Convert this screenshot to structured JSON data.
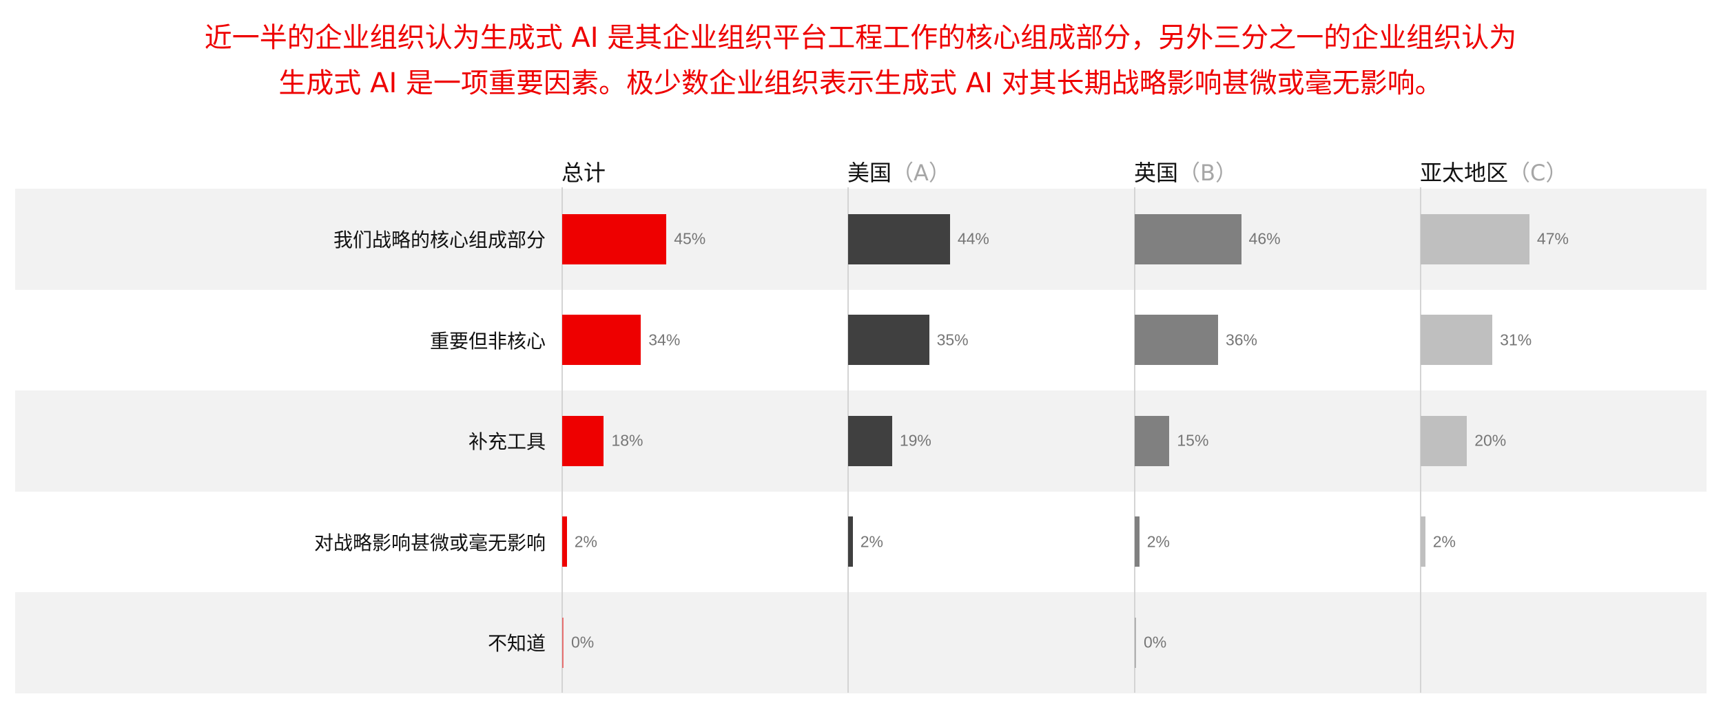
{
  "title_lines": [
    "近一半的企业组织认为生成式 AI 是其企业组织平台工程工作的核心组成部分，另外三分之一的企业组织认为",
    "生成式 AI 是一项重要因素。极少数企业组织表示生成式 AI 对其长期战略影响甚微或毫无影响。"
  ],
  "chart_data": {
    "type": "bar",
    "orientation": "horizontal",
    "categories": [
      "我们战略的核心组成部分",
      "重要但非核心",
      "补充工具",
      "对战略影响甚微或毫无影响",
      "不知道"
    ],
    "panels": [
      {
        "name": "总计",
        "suffix": "",
        "color": "#ee0000",
        "values": [
          45,
          34,
          18,
          2,
          0
        ],
        "labels": [
          "45%",
          "34%",
          "18%",
          "2%",
          "0%"
        ]
      },
      {
        "name": "美国",
        "suffix": "（A）",
        "color": "#404040",
        "values": [
          44,
          35,
          19,
          2,
          null
        ],
        "labels": [
          "44%",
          "35%",
          "19%",
          "2%",
          ""
        ]
      },
      {
        "name": "英国",
        "suffix": "（B）",
        "color": "#808080",
        "values": [
          46,
          36,
          15,
          2,
          0
        ],
        "labels": [
          "46%",
          "36%",
          "15%",
          "2%",
          "0%"
        ]
      },
      {
        "name": "亚太地区",
        "suffix": "（C）",
        "color": "#bfbfbf",
        "values": [
          47,
          31,
          20,
          2,
          null
        ],
        "labels": [
          "47%",
          "31%",
          "20%",
          "2%",
          ""
        ]
      }
    ],
    "unit": "%",
    "row_shading": true
  }
}
